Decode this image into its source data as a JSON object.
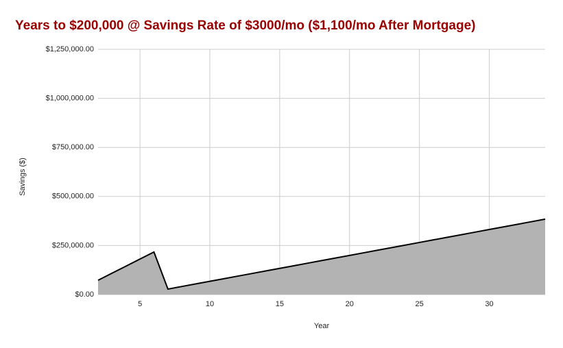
{
  "chart_data": {
    "type": "area",
    "title": "Years to $200,000 @ Savings Rate of $3000/mo ($1,100/mo After Mortgage)",
    "x_label": "Year",
    "y_label": "Savings ($)",
    "x": [
      2,
      3,
      4,
      5,
      6,
      7,
      8,
      9,
      10,
      11,
      12,
      13,
      14,
      15,
      16,
      17,
      18,
      19,
      20,
      21,
      22,
      23,
      24,
      25,
      26,
      27,
      28,
      29,
      30,
      31,
      32,
      33,
      34
    ],
    "series": [
      {
        "name": "Savings",
        "color": "#b3b3b3",
        "line_color": "#000000",
        "values": [
          73000,
          109000,
          145000,
          181000,
          217000,
          28000,
          41200,
          54400,
          67600,
          80800,
          94000,
          107200,
          120400,
          133600,
          146800,
          160000,
          173200,
          186400,
          199600,
          212800,
          226000,
          239200,
          252400,
          265600,
          278800,
          292000,
          305200,
          318400,
          331600,
          344800,
          358000,
          371200,
          384400
        ]
      }
    ],
    "xlim": [
      2,
      34
    ],
    "xticks": [
      5,
      10,
      15,
      20,
      25,
      30
    ],
    "ylim": [
      0,
      1250000
    ],
    "yticks": [
      {
        "value": 0,
        "label": "$0.00"
      },
      {
        "value": 250000,
        "label": "$250,000.00"
      },
      {
        "value": 500000,
        "label": "$500,000.00"
      },
      {
        "value": 750000,
        "label": "$750,000.00"
      },
      {
        "value": 1000000,
        "label": "$1,000,000.00"
      },
      {
        "value": 1250000,
        "label": "$1,250,000.00"
      }
    ],
    "grid": true
  }
}
